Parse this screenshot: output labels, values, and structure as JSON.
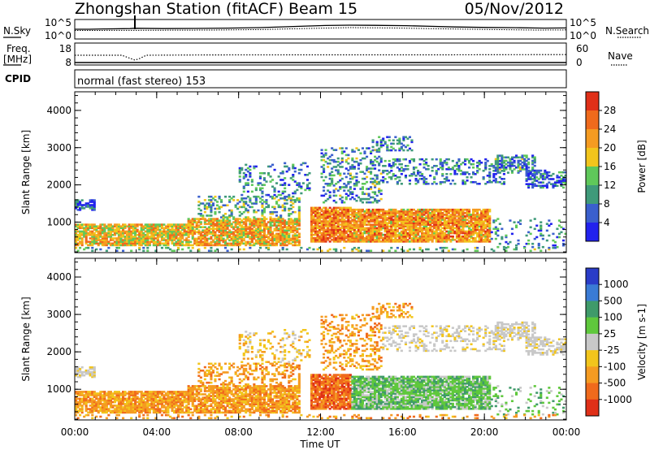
{
  "header": {
    "title": "Zhongshan Station (fitACF)",
    "beam": "Beam 15",
    "date": "05/Nov/2012"
  },
  "strip_labels": {
    "nsky": "N.Sky",
    "nsearch": "N.Search",
    "freq_line1": "Freq.",
    "freq_line2": "[MHz]",
    "nave": "Nave",
    "cpid": "CPID",
    "cpid_value": "normal (fast stereo) 153"
  },
  "strip_ticks": {
    "noise_left_top": "10^5",
    "noise_left_bottom": "10^0",
    "noise_right_top": "10^5",
    "noise_right_bottom": "10^0",
    "freq_left_top": "18",
    "freq_left_bottom": "8",
    "freq_right_top": "60",
    "freq_right_bottom": "0"
  },
  "chart_data": [
    {
      "type": "heatmap",
      "panel": "power",
      "ylabel": "Slant Range [km]",
      "xlabel": "Time UT",
      "ylim": [
        180,
        4500
      ],
      "yticks": [
        "1000",
        "2000",
        "3000",
        "4000"
      ],
      "xticks": [
        "00:00",
        "04:00",
        "08:00",
        "12:00",
        "16:00",
        "20:00",
        "00:00"
      ],
      "colorbar": {
        "label": "Power [dB]",
        "ticks": [
          "4",
          "8",
          "12",
          "16",
          "20",
          "24",
          "28"
        ],
        "colors": [
          "#2222ee",
          "#3a5fcd",
          "#3f9a7a",
          "#5fc85a",
          "#f2c51c",
          "#f59b21",
          "#f06a1c",
          "#e03018"
        ]
      }
    },
    {
      "type": "heatmap",
      "panel": "velocity",
      "ylabel": "Slant Range [km]",
      "xlabel": "Time UT",
      "ylim": [
        180,
        4500
      ],
      "yticks": [
        "1000",
        "2000",
        "3000",
        "4000"
      ],
      "xticks": [
        "00:00",
        "04:00",
        "08:00",
        "12:00",
        "16:00",
        "20:00",
        "00:00"
      ],
      "colorbar": {
        "label": "Velocity [m s-1]",
        "ticks": [
          "1000",
          "500",
          "100",
          "25",
          "-25",
          "-100",
          "-500",
          "-1000"
        ],
        "colors": [
          "#2a3cc8",
          "#3a7bd5",
          "#3f9a6a",
          "#5fc83c",
          "#c8c8c8",
          "#f2c51c",
          "#f59b21",
          "#f06a1c",
          "#e03018"
        ]
      }
    }
  ]
}
